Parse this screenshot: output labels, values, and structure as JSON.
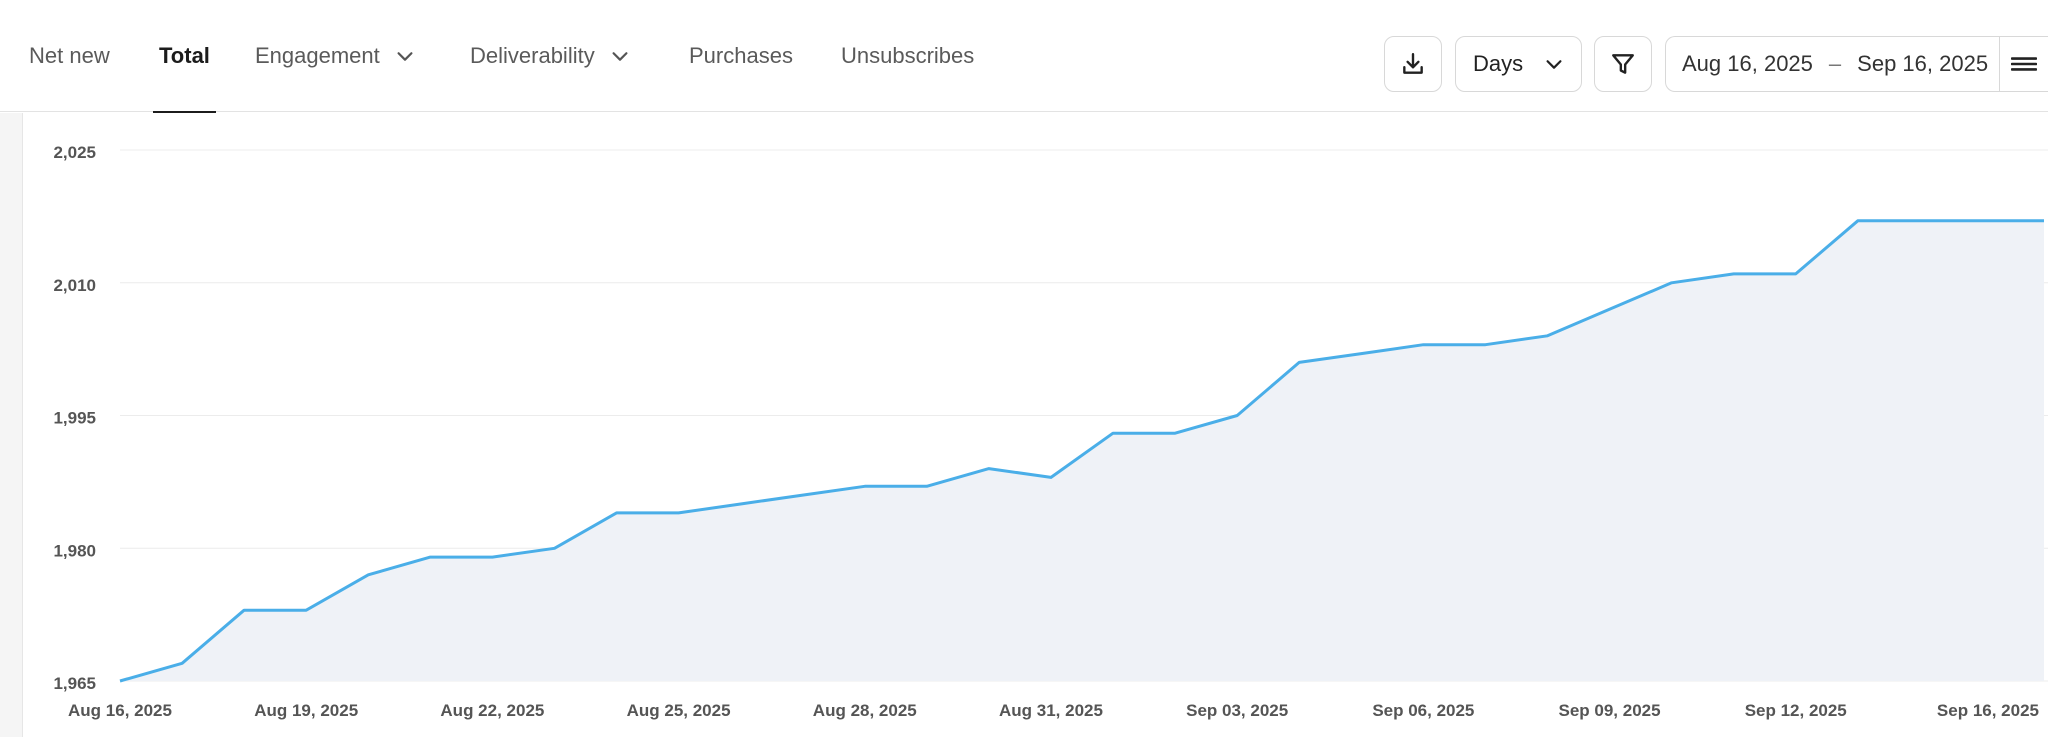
{
  "tabs": [
    {
      "label": "Net new",
      "active": false,
      "dropdown": false
    },
    {
      "label": "Total",
      "active": true,
      "dropdown": false
    },
    {
      "label": "Engagement",
      "active": false,
      "dropdown": true
    },
    {
      "label": "Deliverability",
      "active": false,
      "dropdown": true
    },
    {
      "label": "Purchases",
      "active": false,
      "dropdown": false
    },
    {
      "label": "Unsubscribes",
      "active": false,
      "dropdown": false
    }
  ],
  "toolbar": {
    "download_icon": "download-icon",
    "granularity_label": "Days",
    "filter_icon": "filter-icon",
    "date_start": "Aug 16, 2025",
    "date_separator": "–",
    "date_end": "Sep 16, 2025",
    "menu_icon": "menu-icon"
  },
  "colors": {
    "line": "#4aaee8",
    "area": "#eff2f7",
    "grid": "#ececec"
  },
  "chart_data": {
    "type": "area",
    "title": "",
    "xlabel": "",
    "ylabel": "",
    "ylim": [
      1965,
      2025
    ],
    "yticks": [
      1965,
      1980,
      1995,
      2010,
      2025
    ],
    "ytick_labels": [
      "1,965",
      "1,980",
      "1,995",
      "2,010",
      "2,025"
    ],
    "xticks": [
      "Aug 16, 2025",
      "Aug 19, 2025",
      "Aug 22, 2025",
      "Aug 25, 2025",
      "Aug 28, 2025",
      "Aug 31, 2025",
      "Sep 03, 2025",
      "Sep 06, 2025",
      "Sep 09, 2025",
      "Sep 12, 2025",
      "Sep 16, 2025"
    ],
    "grid": true,
    "x": [
      "Aug 16, 2025",
      "Aug 17, 2025",
      "Aug 18, 2025",
      "Aug 19, 2025",
      "Aug 20, 2025",
      "Aug 21, 2025",
      "Aug 22, 2025",
      "Aug 23, 2025",
      "Aug 24, 2025",
      "Aug 25, 2025",
      "Aug 26, 2025",
      "Aug 27, 2025",
      "Aug 28, 2025",
      "Aug 29, 2025",
      "Aug 30, 2025",
      "Aug 31, 2025",
      "Sep 01, 2025",
      "Sep 02, 2025",
      "Sep 03, 2025",
      "Sep 04, 2025",
      "Sep 05, 2025",
      "Sep 06, 2025",
      "Sep 07, 2025",
      "Sep 08, 2025",
      "Sep 09, 2025",
      "Sep 10, 2025",
      "Sep 11, 2025",
      "Sep 12, 2025",
      "Sep 13, 2025",
      "Sep 14, 2025",
      "Sep 15, 2025",
      "Sep 16, 2025"
    ],
    "series": [
      {
        "values": [
          1965,
          1967,
          1973,
          1973,
          1977,
          1979,
          1979,
          1980,
          1984,
          1984,
          1985,
          1986,
          1987,
          1987,
          1989,
          1988,
          1993,
          1993,
          1995,
          2001,
          2002,
          2003,
          2003,
          2004,
          2007,
          2010,
          2011,
          2011,
          2017,
          2017,
          2017,
          2017
        ]
      }
    ]
  }
}
